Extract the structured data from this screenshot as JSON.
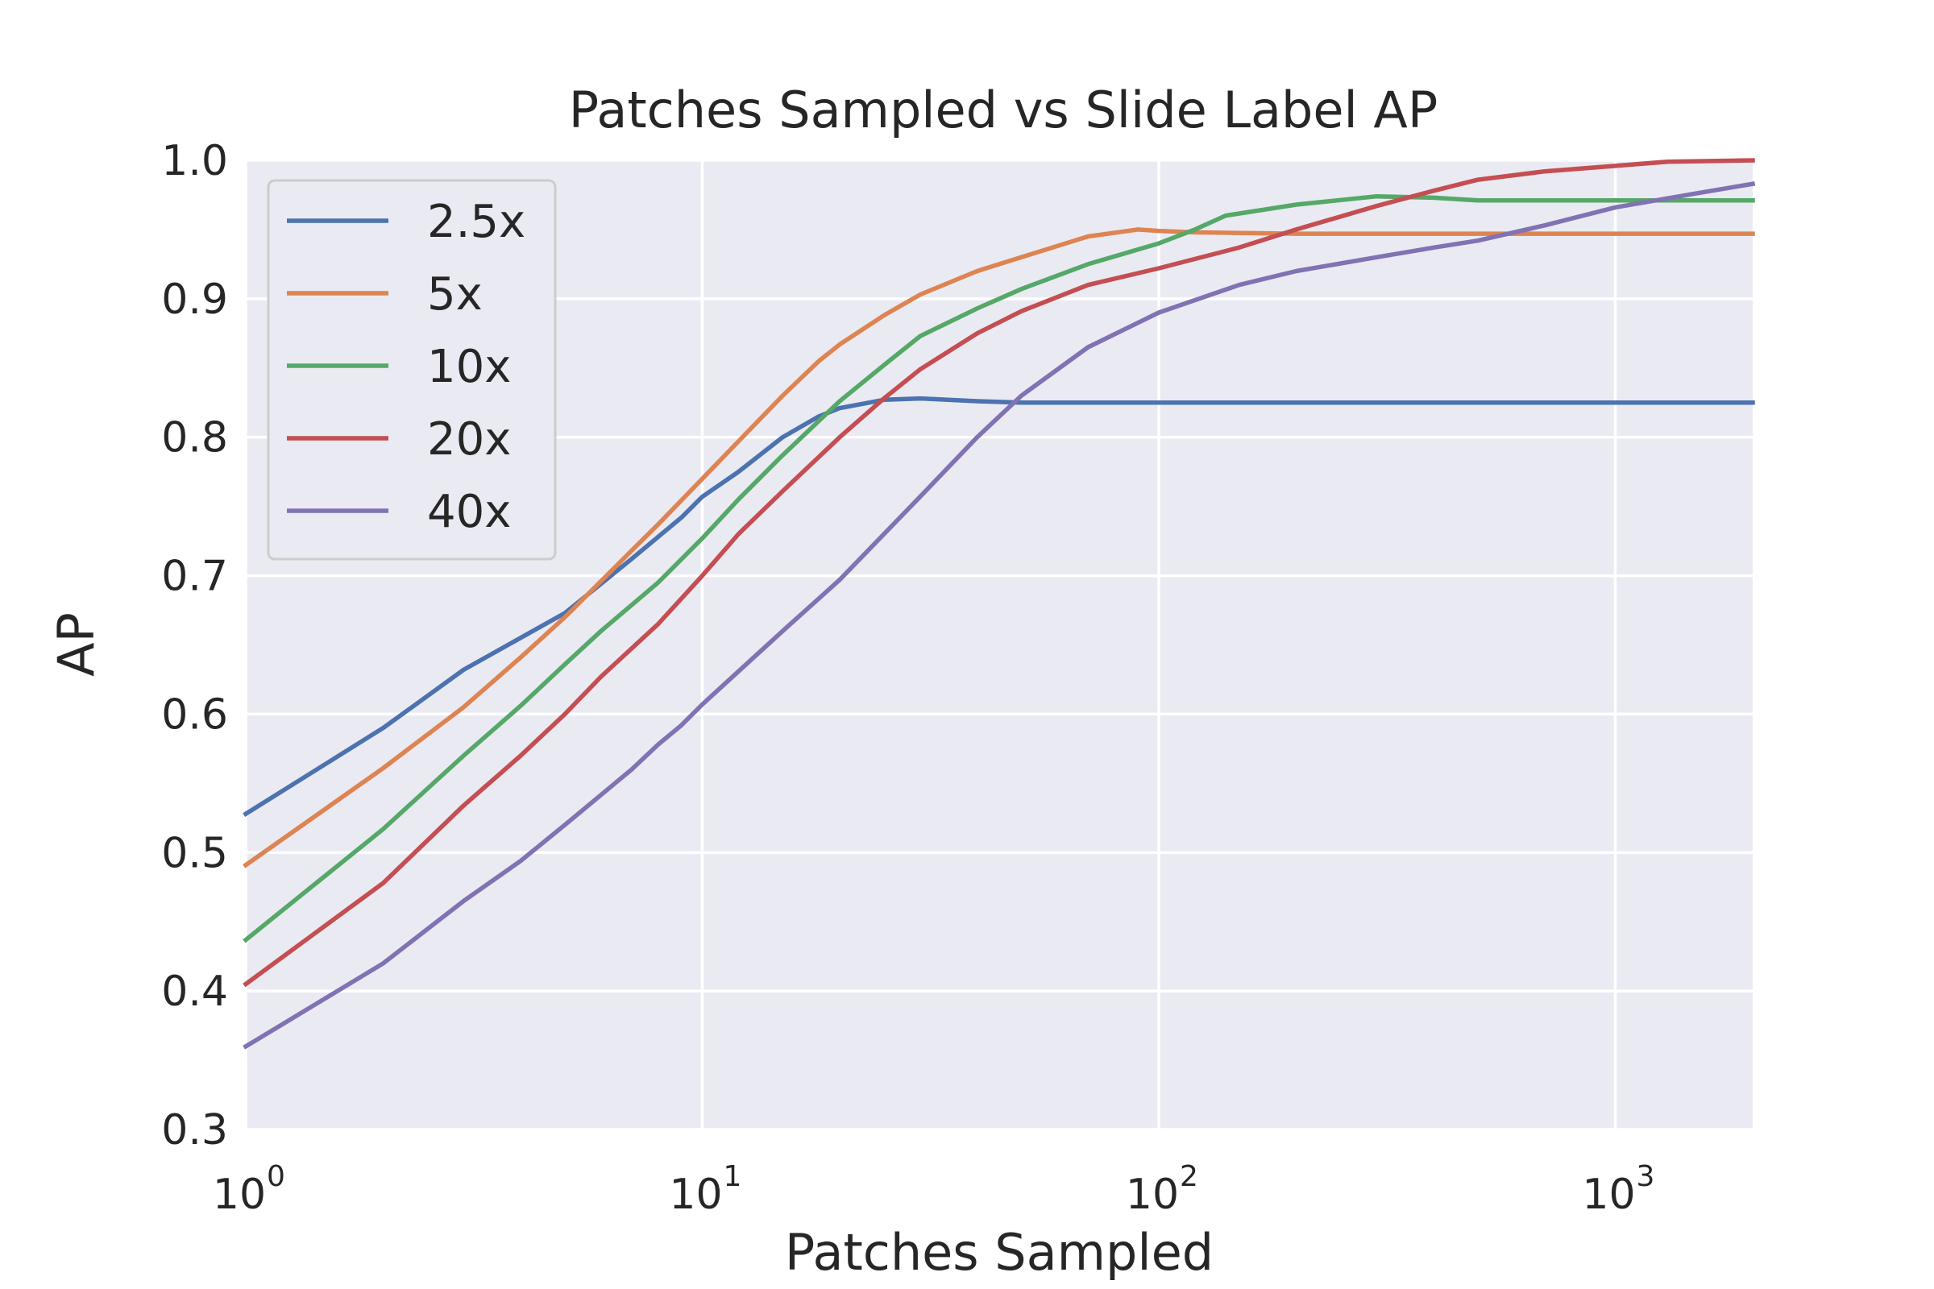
{
  "chart_data": {
    "type": "line",
    "title": "Patches Sampled vs Slide Label AP",
    "xlabel": "Patches Sampled",
    "ylabel": "AP",
    "xscale": "log",
    "xlim": [
      1,
      2000
    ],
    "ylim": [
      0.3,
      1.0
    ],
    "x_ticks": [
      {
        "value": 1,
        "base": "10",
        "exp": "0"
      },
      {
        "value": 10,
        "base": "10",
        "exp": "1"
      },
      {
        "value": 100,
        "base": "10",
        "exp": "2"
      },
      {
        "value": 1000,
        "base": "10",
        "exp": "3"
      }
    ],
    "y_ticks": [
      0.3,
      0.4,
      0.5,
      0.6,
      0.7,
      0.8,
      0.9,
      1.0
    ],
    "y_tick_labels": [
      "0.3",
      "0.4",
      "0.5",
      "0.6",
      "0.7",
      "0.8",
      "0.9",
      "1.0"
    ],
    "grid": true,
    "legend_position": "top-left",
    "series": [
      {
        "name": "2.5x",
        "color": "#4c72b0",
        "points": [
          [
            1,
            0.528
          ],
          [
            2,
            0.59
          ],
          [
            3,
            0.632
          ],
          [
            5,
            0.673
          ],
          [
            7,
            0.712
          ],
          [
            9,
            0.742
          ],
          [
            10,
            0.757
          ],
          [
            12,
            0.775
          ],
          [
            15,
            0.8
          ],
          [
            18,
            0.815
          ],
          [
            20,
            0.821
          ],
          [
            25,
            0.827
          ],
          [
            30,
            0.828
          ],
          [
            40,
            0.826
          ],
          [
            50,
            0.825
          ],
          [
            100,
            0.825
          ],
          [
            500,
            0.825
          ],
          [
            1000,
            0.825
          ],
          [
            2000,
            0.825
          ]
        ]
      },
      {
        "name": "5x",
        "color": "#dd8452",
        "points": [
          [
            1,
            0.491
          ],
          [
            2,
            0.561
          ],
          [
            3,
            0.605
          ],
          [
            4,
            0.641
          ],
          [
            5,
            0.67
          ],
          [
            7,
            0.718
          ],
          [
            8,
            0.737
          ],
          [
            10,
            0.77
          ],
          [
            12,
            0.797
          ],
          [
            15,
            0.83
          ],
          [
            18,
            0.855
          ],
          [
            20,
            0.867
          ],
          [
            25,
            0.888
          ],
          [
            30,
            0.903
          ],
          [
            40,
            0.92
          ],
          [
            50,
            0.93
          ],
          [
            70,
            0.945
          ],
          [
            90,
            0.95
          ],
          [
            100,
            0.949
          ],
          [
            120,
            0.948
          ],
          [
            200,
            0.947
          ],
          [
            500,
            0.947
          ],
          [
            2000,
            0.947
          ]
        ]
      },
      {
        "name": "10x",
        "color": "#55a868",
        "points": [
          [
            1,
            0.437
          ],
          [
            2,
            0.517
          ],
          [
            3,
            0.57
          ],
          [
            4,
            0.606
          ],
          [
            5,
            0.636
          ],
          [
            6,
            0.66
          ],
          [
            8,
            0.695
          ],
          [
            10,
            0.727
          ],
          [
            12,
            0.755
          ],
          [
            15,
            0.787
          ],
          [
            20,
            0.826
          ],
          [
            25,
            0.852
          ],
          [
            30,
            0.873
          ],
          [
            40,
            0.893
          ],
          [
            50,
            0.907
          ],
          [
            70,
            0.925
          ],
          [
            100,
            0.94
          ],
          [
            120,
            0.95
          ],
          [
            140,
            0.96
          ],
          [
            200,
            0.968
          ],
          [
            300,
            0.974
          ],
          [
            400,
            0.973
          ],
          [
            500,
            0.971
          ],
          [
            1000,
            0.971
          ],
          [
            2000,
            0.971
          ]
        ]
      },
      {
        "name": "20x",
        "color": "#c44e52",
        "points": [
          [
            1,
            0.405
          ],
          [
            2,
            0.478
          ],
          [
            3,
            0.534
          ],
          [
            4,
            0.57
          ],
          [
            5,
            0.6
          ],
          [
            6,
            0.627
          ],
          [
            8,
            0.665
          ],
          [
            10,
            0.7
          ],
          [
            12,
            0.73
          ],
          [
            15,
            0.761
          ],
          [
            20,
            0.8
          ],
          [
            25,
            0.828
          ],
          [
            30,
            0.849
          ],
          [
            40,
            0.875
          ],
          [
            50,
            0.891
          ],
          [
            70,
            0.91
          ],
          [
            100,
            0.922
          ],
          [
            150,
            0.937
          ],
          [
            200,
            0.95
          ],
          [
            300,
            0.967
          ],
          [
            400,
            0.978
          ],
          [
            500,
            0.986
          ],
          [
            700,
            0.992
          ],
          [
            1000,
            0.996
          ],
          [
            1300,
            0.999
          ],
          [
            2000,
            1.0
          ]
        ]
      },
      {
        "name": "40x",
        "color": "#8172b3",
        "points": [
          [
            1,
            0.36
          ],
          [
            2,
            0.42
          ],
          [
            3,
            0.465
          ],
          [
            4,
            0.494
          ],
          [
            5,
            0.52
          ],
          [
            7,
            0.56
          ],
          [
            8,
            0.578
          ],
          [
            9,
            0.592
          ],
          [
            10,
            0.607
          ],
          [
            15,
            0.66
          ],
          [
            20,
            0.697
          ],
          [
            30,
            0.757
          ],
          [
            40,
            0.8
          ],
          [
            50,
            0.83
          ],
          [
            70,
            0.865
          ],
          [
            100,
            0.89
          ],
          [
            150,
            0.91
          ],
          [
            200,
            0.92
          ],
          [
            300,
            0.93
          ],
          [
            400,
            0.937
          ],
          [
            500,
            0.942
          ],
          [
            700,
            0.953
          ],
          [
            1000,
            0.966
          ],
          [
            1500,
            0.976
          ],
          [
            2000,
            0.983
          ]
        ]
      }
    ]
  }
}
